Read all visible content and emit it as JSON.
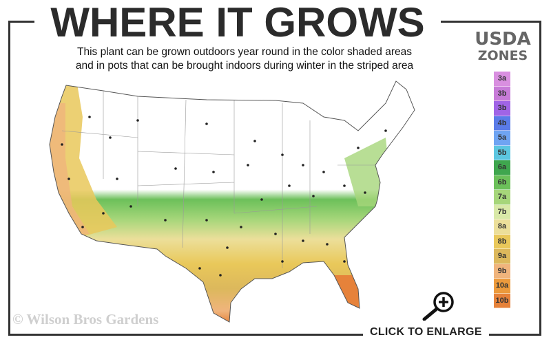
{
  "header": {
    "title": "WHERE IT GROWS",
    "subtitle_line1": "This plant can be grown outdoors year round in the color shaded areas",
    "subtitle_line2": "and in pots that can be brought indoors during winter in the striped area"
  },
  "legend": {
    "title_line1": "USDA",
    "title_line2": "ZONES",
    "zones": [
      {
        "label": "3a",
        "color": "#d98fe0"
      },
      {
        "label": "3b",
        "color": "#c77bd8"
      },
      {
        "label": "3b",
        "color": "#a064e6"
      },
      {
        "label": "4b",
        "color": "#5a7be8"
      },
      {
        "label": "5a",
        "color": "#6fa4f2"
      },
      {
        "label": "5b",
        "color": "#5cc6e0"
      },
      {
        "label": "6a",
        "color": "#3fa64e"
      },
      {
        "label": "6b",
        "color": "#6cc05a"
      },
      {
        "label": "7a",
        "color": "#a6d67a"
      },
      {
        "label": "7b",
        "color": "#d9e9a8"
      },
      {
        "label": "8a",
        "color": "#ecdf9a"
      },
      {
        "label": "8b",
        "color": "#e9c85a"
      },
      {
        "label": "9a",
        "color": "#dcb85c"
      },
      {
        "label": "9b",
        "color": "#f0b47c"
      },
      {
        "label": "10a",
        "color": "#ec9a3c"
      },
      {
        "label": "10b",
        "color": "#e6823a"
      }
    ]
  },
  "footer": {
    "watermark": "© Wilson Bros Gardens",
    "enlarge_label": "CLICK TO ENLARGE",
    "enlarge_icon": "magnifier-plus-icon"
  }
}
